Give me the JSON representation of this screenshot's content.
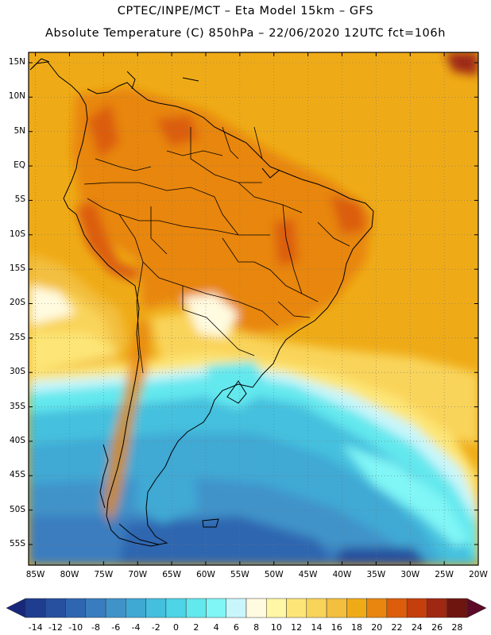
{
  "title": {
    "line1": "CPTEC/INPE/MCT –  Eta Model 15km – GFS",
    "line2": "Absolute Temperature (C) 850hPa – 22/06/2020 12UTC fct=106h"
  },
  "map": {
    "lat_labels": [
      "15N",
      "10N",
      "5N",
      "EQ",
      "5S",
      "10S",
      "15S",
      "20S",
      "25S",
      "30S",
      "35S",
      "40S",
      "45S",
      "50S",
      "55S"
    ],
    "lat_values": [
      15,
      10,
      5,
      0,
      -5,
      -10,
      -15,
      -20,
      -25,
      -30,
      -35,
      -40,
      -45,
      -50,
      -55
    ],
    "lon_labels": [
      "85W",
      "80W",
      "75W",
      "70W",
      "65W",
      "60W",
      "55W",
      "50W",
      "45W",
      "40W",
      "35W",
      "30W",
      "25W",
      "20W"
    ],
    "lon_values": [
      -85,
      -80,
      -75,
      -70,
      -65,
      -60,
      -55,
      -50,
      -45,
      -40,
      -35,
      -30,
      -25,
      -20
    ],
    "lon_range": [
      -86,
      -20
    ],
    "lat_range": [
      -58,
      16.5
    ]
  },
  "colorbar": {
    "labels": [
      "-14",
      "-12",
      "-10",
      "-8",
      "-6",
      "-4",
      "-2",
      "0",
      "2",
      "4",
      "6",
      "8",
      "10",
      "12",
      "14",
      "16",
      "18",
      "20",
      "22",
      "24",
      "26",
      "28"
    ],
    "colors": [
      "#1f3d8f",
      "#27509e",
      "#2e66b0",
      "#3a7dbf",
      "#3f93c9",
      "#3fa9d4",
      "#44c0de",
      "#4dd4e6",
      "#63e8ee",
      "#80f6f6",
      "#c8f6fb",
      "#fffbe0",
      "#fff7a6",
      "#fde677",
      "#f9d45a",
      "#f3bf3f",
      "#efab17",
      "#e8860f",
      "#dc5d0c",
      "#c43f0c",
      "#9e2812",
      "#6f1510"
    ],
    "left_arrow_color": "#17277a",
    "right_arrow_color": "#5b0a2a"
  }
}
